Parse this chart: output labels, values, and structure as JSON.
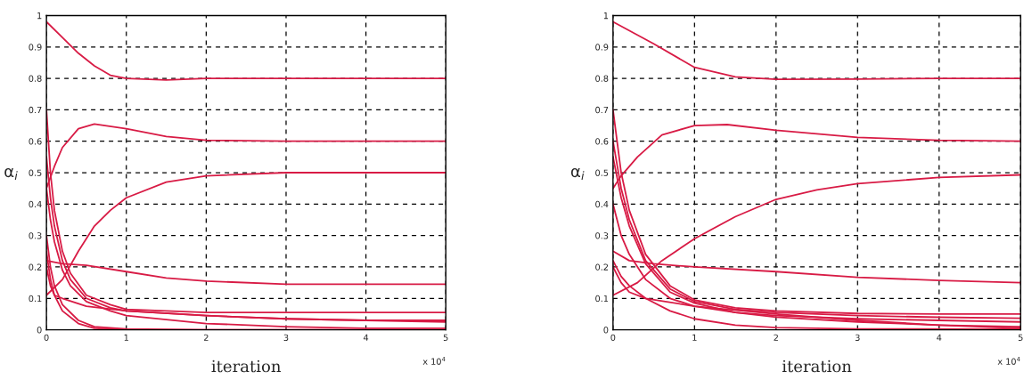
{
  "chart_data": [
    {
      "type": "line",
      "xlabel": "iteration",
      "ylabel": "α$_{i}$",
      "xlim": [
        0,
        5
      ],
      "ylim": [
        0,
        1
      ],
      "xticks": [
        0,
        1,
        2,
        3,
        4,
        5
      ],
      "yticks": [
        0,
        0.1,
        0.2,
        0.3,
        0.4,
        0.5,
        0.6,
        0.7,
        0.8,
        0.9,
        1
      ],
      "grid": true,
      "annotations": [
        "x 10$^{4}$"
      ],
      "series": [
        {
          "color": "#d81b45",
          "x": [
            0,
            0.2,
            0.4,
            0.6,
            0.8,
            1,
            1.5,
            2,
            3,
            4,
            5
          ],
          "values": [
            0.98,
            0.93,
            0.88,
            0.84,
            0.81,
            0.8,
            0.795,
            0.8,
            0.8,
            0.8,
            0.8
          ]
        },
        {
          "color": "#d81b45",
          "x": [
            0,
            0.1,
            0.2,
            0.4,
            0.6,
            1,
            1.5,
            2,
            3,
            4,
            5
          ],
          "values": [
            0.45,
            0.52,
            0.58,
            0.64,
            0.655,
            0.64,
            0.615,
            0.603,
            0.6,
            0.6,
            0.6
          ]
        },
        {
          "color": "#d81b45",
          "x": [
            0,
            0.2,
            0.4,
            0.6,
            0.8,
            1,
            1.5,
            2,
            3,
            4,
            5
          ],
          "values": [
            0.11,
            0.16,
            0.25,
            0.33,
            0.38,
            0.42,
            0.47,
            0.49,
            0.5,
            0.5,
            0.5
          ]
        },
        {
          "color": "#d81b45",
          "x": [
            0,
            0.2,
            0.5,
            1,
            1.5,
            2,
            3,
            4,
            5
          ],
          "values": [
            0.22,
            0.21,
            0.205,
            0.185,
            0.165,
            0.155,
            0.145,
            0.145,
            0.145
          ]
        },
        {
          "color": "#d81b45",
          "x": [
            0,
            0.05,
            0.1,
            0.2,
            0.3,
            0.5,
            0.8,
            1,
            2,
            3,
            4,
            5
          ],
          "values": [
            0.7,
            0.5,
            0.38,
            0.25,
            0.18,
            0.11,
            0.08,
            0.065,
            0.055,
            0.055,
            0.055,
            0.055
          ]
        },
        {
          "color": "#d81b45",
          "x": [
            0,
            0.05,
            0.1,
            0.2,
            0.3,
            0.5,
            0.8,
            1,
            2,
            3,
            4,
            5
          ],
          "values": [
            0.55,
            0.42,
            0.33,
            0.22,
            0.16,
            0.1,
            0.07,
            0.06,
            0.045,
            0.035,
            0.03,
            0.03
          ]
        },
        {
          "color": "#d81b45",
          "x": [
            0,
            0.05,
            0.1,
            0.2,
            0.3,
            0.5,
            0.8,
            1,
            2,
            3,
            4,
            5
          ],
          "values": [
            0.45,
            0.35,
            0.28,
            0.19,
            0.14,
            0.09,
            0.06,
            0.045,
            0.02,
            0.01,
            0.005,
            0.005
          ]
        },
        {
          "color": "#d81b45",
          "x": [
            0,
            0.05,
            0.1,
            0.2,
            0.4,
            0.6,
            1,
            2,
            5
          ],
          "values": [
            0.3,
            0.2,
            0.14,
            0.08,
            0.03,
            0.01,
            0.003,
            0,
            0
          ]
        },
        {
          "color": "#d81b45",
          "x": [
            0,
            0.05,
            0.1,
            0.2,
            0.5,
            1,
            2,
            3,
            4,
            5
          ],
          "values": [
            0.2,
            0.14,
            0.11,
            0.1,
            0.075,
            0.06,
            0.045,
            0.035,
            0.03,
            0.025
          ]
        },
        {
          "color": "#d81b45",
          "x": [
            0,
            0.05,
            0.1,
            0.2,
            0.4,
            0.6,
            1,
            2,
            5
          ],
          "values": [
            0.25,
            0.16,
            0.11,
            0.06,
            0.02,
            0.005,
            0,
            0,
            0
          ]
        }
      ]
    },
    {
      "type": "line",
      "xlabel": "iteration",
      "ylabel": "α$_{i}$",
      "xlim": [
        0,
        5
      ],
      "ylim": [
        0,
        1
      ],
      "xticks": [
        0,
        1,
        2,
        3,
        4,
        5
      ],
      "yticks": [
        0,
        0.1,
        0.2,
        0.3,
        0.4,
        0.5,
        0.6,
        0.7,
        0.8,
        0.9,
        1
      ],
      "grid": true,
      "annotations": [
        "x 10$^{4}$"
      ],
      "series": [
        {
          "color": "#d81b45",
          "x": [
            0,
            0.5,
            1,
            1.5,
            2,
            3,
            4,
            5
          ],
          "values": [
            0.98,
            0.91,
            0.835,
            0.805,
            0.797,
            0.798,
            0.8,
            0.8
          ]
        },
        {
          "color": "#d81b45",
          "x": [
            0,
            0.1,
            0.3,
            0.6,
            1,
            1.4,
            2,
            3,
            4,
            5
          ],
          "values": [
            0.45,
            0.49,
            0.55,
            0.62,
            0.65,
            0.653,
            0.635,
            0.612,
            0.603,
            0.6
          ]
        },
        {
          "color": "#d81b45",
          "x": [
            0,
            0.3,
            0.6,
            1,
            1.5,
            2,
            2.5,
            3,
            4,
            5
          ],
          "values": [
            0.11,
            0.15,
            0.22,
            0.29,
            0.36,
            0.415,
            0.445,
            0.465,
            0.485,
            0.493
          ]
        },
        {
          "color": "#d81b45",
          "x": [
            0,
            0.2,
            0.5,
            1,
            2,
            3,
            4,
            5
          ],
          "values": [
            0.25,
            0.22,
            0.21,
            0.2,
            0.185,
            0.167,
            0.157,
            0.15
          ]
        },
        {
          "color": "#d81b45",
          "x": [
            0,
            0.1,
            0.2,
            0.4,
            0.7,
            1,
            1.5,
            2,
            3,
            4,
            5
          ],
          "values": [
            0.7,
            0.5,
            0.38,
            0.24,
            0.14,
            0.095,
            0.07,
            0.06,
            0.052,
            0.05,
            0.05
          ]
        },
        {
          "color": "#d81b45",
          "x": [
            0,
            0.1,
            0.2,
            0.4,
            0.7,
            1,
            1.5,
            2,
            3,
            4,
            5
          ],
          "values": [
            0.6,
            0.45,
            0.35,
            0.22,
            0.13,
            0.09,
            0.065,
            0.055,
            0.045,
            0.04,
            0.037
          ]
        },
        {
          "color": "#d81b45",
          "x": [
            0,
            0.1,
            0.2,
            0.4,
            0.7,
            1,
            1.5,
            2,
            3,
            4,
            5
          ],
          "values": [
            0.55,
            0.42,
            0.33,
            0.21,
            0.12,
            0.085,
            0.055,
            0.04,
            0.025,
            0.015,
            0.01
          ]
        },
        {
          "color": "#d81b45",
          "x": [
            0,
            0.1,
            0.2,
            0.4,
            0.7,
            1,
            1.5,
            2,
            3,
            4,
            5
          ],
          "values": [
            0.4,
            0.3,
            0.24,
            0.16,
            0.1,
            0.075,
            0.055,
            0.045,
            0.035,
            0.03,
            0.025
          ]
        },
        {
          "color": "#d81b45",
          "x": [
            0,
            0.1,
            0.2,
            0.4,
            0.7,
            1,
            1.5,
            2,
            3,
            5
          ],
          "values": [
            0.22,
            0.17,
            0.14,
            0.1,
            0.06,
            0.035,
            0.015,
            0.007,
            0.003,
            0.002
          ]
        },
        {
          "color": "#d81b45",
          "x": [
            0,
            0.1,
            0.2,
            0.4,
            1,
            2,
            3,
            4,
            5
          ],
          "values": [
            0.2,
            0.15,
            0.12,
            0.1,
            0.075,
            0.05,
            0.03,
            0.015,
            0.005
          ]
        }
      ]
    }
  ]
}
